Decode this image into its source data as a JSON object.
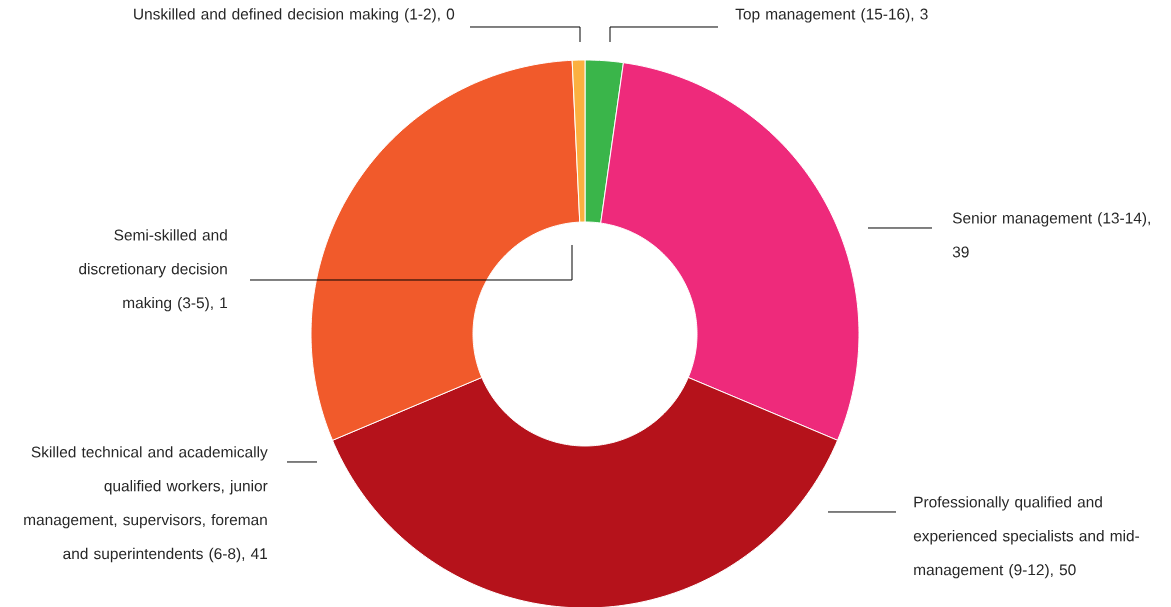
{
  "chart_data": {
    "type": "donut",
    "categories": [
      "Unskilled and defined decision making (1-2), 0",
      "Top management (15-16), 3",
      "Senior management (13-14), 39",
      "Professionally qualified and experienced specialists and mid-management (9-12), 50",
      "Skilled technical and academically qualified workers, junior management, supervisors, foreman and superintendents (6-8), 41",
      "Semi-skilled and discretionary decision making (3-5), 1"
    ],
    "values": [
      0,
      3,
      39,
      50,
      41,
      1
    ],
    "colors": [
      "#0a6b35",
      "#3ab54a",
      "#ee2a7b",
      "#b5121b",
      "#f15a2b",
      "#fbb040"
    ]
  }
}
